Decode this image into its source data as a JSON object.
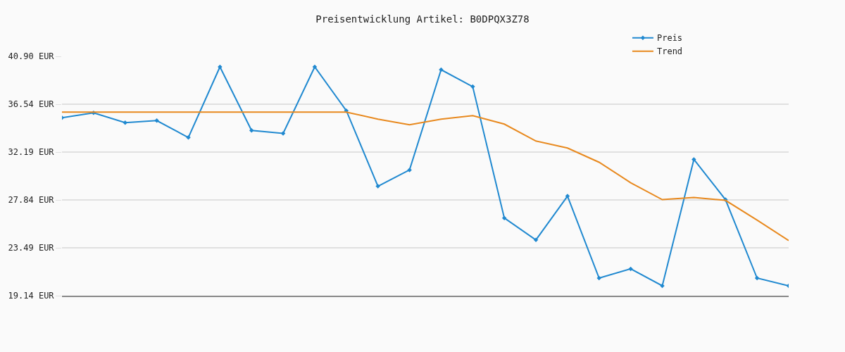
{
  "chart_data": {
    "type": "line",
    "title": "Preisentwicklung Artikel: B0DPQX3Z78",
    "categories": [
      null,
      null,
      null,
      null,
      null,
      null,
      null,
      null,
      null,
      null,
      null,
      null,
      null,
      null,
      null,
      null,
      null,
      null,
      null,
      null,
      null,
      null,
      null,
      null
    ],
    "series": [
      {
        "name": "Preis",
        "color": "#2089d0",
        "marker": "diamond",
        "values": [
          35.32,
          35.76,
          34.87,
          35.06,
          33.52,
          39.94,
          34.16,
          33.9,
          39.94,
          35.96,
          29.09,
          30.57,
          39.68,
          38.14,
          26.2,
          24.21,
          28.19,
          20.74,
          21.58,
          20.04,
          31.53,
          27.87,
          20.74,
          20.04
        ]
      },
      {
        "name": "Trend",
        "color": "#e8891e",
        "marker": "none",
        "values": [
          35.83,
          35.83,
          35.83,
          35.83,
          35.83,
          35.83,
          35.83,
          35.83,
          35.83,
          35.83,
          35.19,
          34.67,
          35.19,
          35.51,
          34.74,
          33.2,
          32.56,
          31.27,
          29.41,
          27.87,
          28.06,
          27.81,
          26.01,
          24.15
        ]
      }
    ],
    "ylim": [
      19.14,
      40.9
    ],
    "yticks": [
      {
        "value": 19.14,
        "label": "19.14 EUR"
      },
      {
        "value": 23.49,
        "label": "23.49 EUR"
      },
      {
        "value": 27.84,
        "label": "27.84 EUR"
      },
      {
        "value": 32.19,
        "label": "32.19 EUR"
      },
      {
        "value": 36.54,
        "label": "36.54 EUR"
      },
      {
        "value": 40.9,
        "label": "40.90 EUR"
      }
    ],
    "grid": "y",
    "legend": "top right",
    "tick_labels": "y",
    "line_style": "solid"
  }
}
